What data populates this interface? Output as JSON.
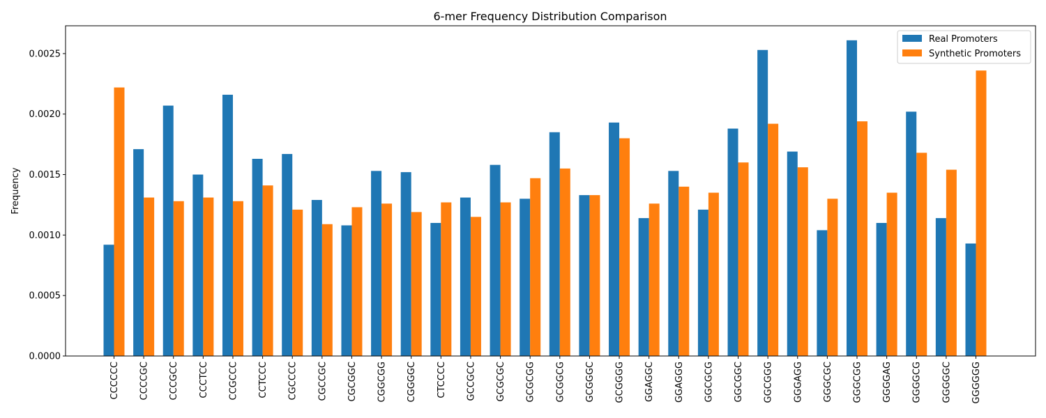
{
  "chart_data": {
    "type": "bar",
    "title": "6-mer Frequency Distribution Comparison",
    "xlabel": "",
    "ylabel": "Frequency",
    "ylim": [
      0,
      0.00273
    ],
    "yticks": [
      "0.0000",
      "0.0005",
      "0.0010",
      "0.0015",
      "0.0020",
      "0.0025"
    ],
    "ytick_values": [
      0,
      0.0005,
      0.001,
      0.0015,
      0.002,
      0.0025
    ],
    "legend_position": "top-right",
    "grid": false,
    "categories": [
      "CCCCCC",
      "CCCCGC",
      "CCCGCC",
      "CCCTCC",
      "CCGCCC",
      "CCTCCC",
      "CGCCCC",
      "CGCCGC",
      "CGCGGC",
      "CGGCGG",
      "CGGGGC",
      "CTCCCC",
      "GCCGCC",
      "GCGCGC",
      "GCGCGG",
      "GCGGCG",
      "GCGGGC",
      "GCGGGG",
      "GGAGGC",
      "GGAGGG",
      "GGCGCG",
      "GGCGGC",
      "GGCGGG",
      "GGGAGG",
      "GGGCGC",
      "GGGCGG",
      "GGGGAG",
      "GGGGCG",
      "GGGGGC",
      "GGGGGG"
    ],
    "series": [
      {
        "name": "Real Promoters",
        "color": "#1f77b4",
        "values": [
          0.00092,
          0.00171,
          0.00207,
          0.0015,
          0.00216,
          0.00163,
          0.00167,
          0.00129,
          0.00108,
          0.00153,
          0.00152,
          0.0011,
          0.00131,
          0.00158,
          0.0013,
          0.00185,
          0.00133,
          0.00193,
          0.00114,
          0.00153,
          0.00121,
          0.00188,
          0.00253,
          0.00169,
          0.00104,
          0.00261,
          0.0011,
          0.00202,
          0.00114,
          0.00093
        ]
      },
      {
        "name": "Synthetic Promoters",
        "color": "#ff7f0e",
        "values": [
          0.00222,
          0.00131,
          0.00128,
          0.00131,
          0.00128,
          0.00141,
          0.00121,
          0.00109,
          0.00123,
          0.00126,
          0.00119,
          0.00127,
          0.00115,
          0.00127,
          0.00147,
          0.00155,
          0.00133,
          0.0018,
          0.00126,
          0.0014,
          0.00135,
          0.0016,
          0.00192,
          0.00156,
          0.0013,
          0.00194,
          0.00135,
          0.00168,
          0.00154,
          0.00236
        ]
      }
    ]
  }
}
